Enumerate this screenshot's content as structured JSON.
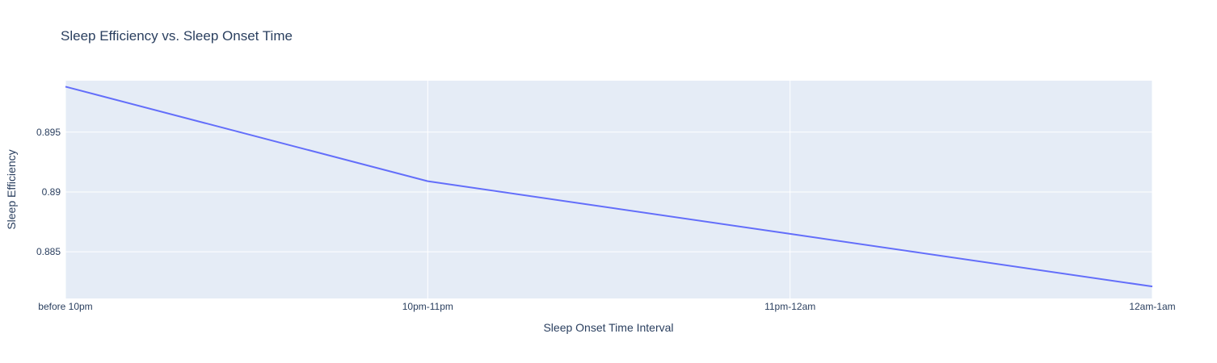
{
  "chart_data": {
    "type": "line",
    "title": "Sleep Efficiency vs. Sleep Onset Time",
    "xlabel": "Sleep Onset Time Interval",
    "ylabel": "Sleep Efficiency",
    "categories": [
      "before 10pm",
      "10pm-11pm",
      "11pm-12am",
      "12am-1am"
    ],
    "series": [
      {
        "values": [
          0.8988,
          0.8909,
          0.8865,
          0.8821
        ],
        "color": "#636efa"
      }
    ],
    "ylim": [
      0.8811,
      0.8993
    ],
    "yticks": [
      0.885,
      0.89,
      0.895
    ],
    "ytick_labels": [
      "0.885",
      "0.89",
      "0.895"
    ],
    "grid": true,
    "legend": "none",
    "colors": {
      "plot_background": "#e5ecf6",
      "text": "#2a3f5f",
      "grid": "#ffffff"
    }
  }
}
